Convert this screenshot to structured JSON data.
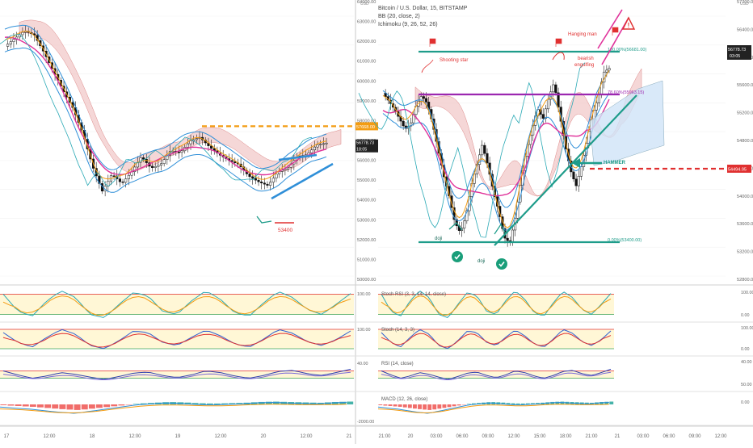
{
  "header": {
    "symbol": "Bitcoin / U.S. Dollar, 15, BITSTAMP",
    "bb": "BB (20, close, 2)",
    "ichimoku": "Ichimoku (9, 26, 52, 26)"
  },
  "colors": {
    "accent_orange": "#f39c12",
    "accent_red": "#e03030",
    "teal": "#1e9c8a",
    "magenta": "#e0329a",
    "purple": "#9c27b0",
    "blue": "#2f8fd8",
    "cloud_red": "#f2c9c9",
    "cloud_blue": "#cfe3f7"
  },
  "chart_data": [
    {
      "type": "line",
      "title": "",
      "panel": "left-price",
      "ylabel": "USD",
      "yticks": [
        "64000.00",
        "63000.00",
        "62000.00",
        "61000.00",
        "60000.00",
        "59000.00",
        "58000.00",
        "57000.00",
        "56000.00",
        "55000.00",
        "54000.00",
        "53000.00",
        "52000.00",
        "51000.00",
        "50000.00"
      ],
      "ylim": [
        49500,
        64200
      ],
      "xticks": [
        "17",
        "12:00",
        "18",
        "12:00",
        "19",
        "12:00",
        "20",
        "12:00",
        "21"
      ],
      "price_labels": [
        {
          "label": "57668.00",
          "color": "#f39c12"
        },
        {
          "label": "56778.73",
          "color": "#222222"
        },
        {
          "label": "18:05",
          "color": "#222222"
        }
      ],
      "annotations": [
        "53400"
      ],
      "levels": [
        {
          "name": "resistance",
          "value": 57668,
          "style": "dashed"
        }
      ],
      "series": [
        {
          "name": "",
          "values": [
            61800,
            62200,
            62600,
            62400,
            61500,
            60500,
            59500,
            58600,
            57300,
            55600,
            54300,
            55200,
            54700,
            55300,
            56100,
            55500,
            55700,
            56400,
            56300,
            56900,
            57100,
            56600,
            56200,
            55900,
            55700,
            55100,
            54800,
            54600,
            55300,
            55500,
            56100,
            56200,
            56700,
            56800
          ]
        }
      ]
    },
    {
      "type": "line",
      "title": "",
      "panel": "right-price",
      "ylabel": "USD",
      "yticks": [
        "57700.00",
        "56400.00",
        "56000.00",
        "55600.00",
        "55200.00",
        "54800.00",
        "54400.00",
        "54000.00",
        "53600.00",
        "53200.00",
        "52800.00"
      ],
      "ylim": [
        52600,
        58100
      ],
      "xticks": [
        "21:00",
        "20",
        "03:00",
        "06:00",
        "09:00",
        "12:00",
        "15:00",
        "18:00",
        "21:00",
        "21",
        "03:00",
        "06:00",
        "09:00",
        "12:00"
      ],
      "price_labels": [
        {
          "label": "56778.73",
          "color": "#222222"
        },
        {
          "label": "03:05",
          "color": "#222222"
        },
        {
          "label": "54494.95",
          "color": "#e03030"
        }
      ],
      "fib_levels": [
        {
          "label": "100.00%(56681.00)",
          "value": 56681
        },
        {
          "label": "78.60%(55963.15)",
          "value": 55963
        },
        {
          "label": "0.00%(53400.00)",
          "value": 53400
        }
      ],
      "annotations": [
        "Shooting star",
        "Hanging man",
        "bearish engulfing",
        "HAMMER",
        "doji",
        "doji"
      ],
      "series": [
        {
          "name": "",
          "values": [
            56300,
            56150,
            56000,
            55800,
            55600,
            55700,
            56050,
            56250,
            56100,
            55700,
            55200,
            54700,
            54300,
            53800,
            53600,
            53900,
            54500,
            54900,
            55300,
            54900,
            54400,
            54000,
            53500,
            53400,
            53900,
            54600,
            55200,
            55600,
            56000,
            55800,
            56200,
            56500,
            55900,
            55300,
            54800,
            54500,
            54900,
            55400,
            55900,
            56200,
            56700,
            56778
          ]
        }
      ]
    },
    {
      "type": "line",
      "title": "",
      "panel": "stoch-rsi",
      "label": "Stoch RSI (3, 3, 14, 14, close)",
      "yticks": [
        "100.00",
        "0.00"
      ],
      "ylim": [
        0,
        100
      ],
      "series": [
        {
          "name": "",
          "values": [
            80,
            30,
            15,
            60,
            90,
            70,
            20,
            10,
            50,
            85,
            75,
            30,
            20,
            60,
            90,
            65,
            25,
            15,
            55,
            88,
            70,
            35,
            20,
            50,
            82
          ]
        }
      ]
    },
    {
      "type": "line",
      "title": "",
      "panel": "stoch",
      "label": "Stoch (14, 3, 3)",
      "yticks": [
        "100.00",
        "0.00"
      ],
      "ylim": [
        0,
        100
      ],
      "series": [
        {
          "name": "",
          "values": [
            70,
            40,
            25,
            55,
            80,
            65,
            30,
            20,
            45,
            75,
            70,
            40,
            30,
            55,
            78,
            60,
            35,
            25,
            50,
            80,
            68,
            42,
            30,
            48,
            75
          ]
        }
      ]
    },
    {
      "type": "line",
      "title": "",
      "panel": "rsi",
      "label": "RSI (14, close)",
      "yticks": [
        "40.00",
        "50.00"
      ],
      "ylim": [
        20,
        80
      ],
      "series": [
        {
          "name": "",
          "values": [
            55,
            48,
            42,
            46,
            52,
            49,
            44,
            40,
            45,
            51,
            53,
            47,
            43,
            48,
            55,
            52,
            46,
            42,
            47,
            54,
            56,
            50,
            47,
            52,
            58
          ]
        }
      ]
    },
    {
      "type": "bar",
      "title": "",
      "panel": "macd",
      "label": "MACD (12, 26, close)",
      "yticks": [
        "2000.00",
        "0.00",
        "-2000.00"
      ],
      "ylim": [
        -2500,
        1500
      ],
      "values": [
        -100,
        -200,
        -300,
        -450,
        -600,
        -700,
        -500,
        -300,
        -100,
        100,
        200,
        300,
        250,
        150,
        100,
        150,
        200,
        300,
        350,
        300,
        250,
        200,
        300,
        350
      ]
    }
  ]
}
